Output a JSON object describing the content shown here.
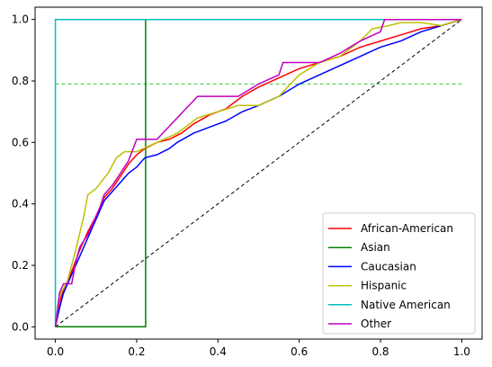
{
  "chart_data": {
    "type": "line",
    "title": "",
    "xlabel": "",
    "ylabel": "",
    "xlim": [
      -0.05,
      1.05
    ],
    "ylim": [
      -0.04,
      1.04
    ],
    "grid": false,
    "legend_position": "lower-right",
    "x_ticks": [
      "0.0",
      "0.2",
      "0.4",
      "0.6",
      "0.8",
      "1.0"
    ],
    "y_ticks": [
      "0.0",
      "0.2",
      "0.4",
      "0.6",
      "0.8",
      "1.0"
    ],
    "series": [
      {
        "name": "African-American",
        "color": "#ff0000",
        "points": [
          [
            0,
            0
          ],
          [
            0.01,
            0.08
          ],
          [
            0.02,
            0.12
          ],
          [
            0.04,
            0.18
          ],
          [
            0.06,
            0.25
          ],
          [
            0.08,
            0.31
          ],
          [
            0.1,
            0.36
          ],
          [
            0.12,
            0.42
          ],
          [
            0.14,
            0.45
          ],
          [
            0.16,
            0.49
          ],
          [
            0.18,
            0.53
          ],
          [
            0.2,
            0.56
          ],
          [
            0.22,
            0.58
          ],
          [
            0.25,
            0.6
          ],
          [
            0.28,
            0.61
          ],
          [
            0.31,
            0.63
          ],
          [
            0.34,
            0.66
          ],
          [
            0.38,
            0.69
          ],
          [
            0.42,
            0.71
          ],
          [
            0.46,
            0.75
          ],
          [
            0.5,
            0.78
          ],
          [
            0.55,
            0.81
          ],
          [
            0.6,
            0.84
          ],
          [
            0.65,
            0.86
          ],
          [
            0.7,
            0.88
          ],
          [
            0.75,
            0.91
          ],
          [
            0.8,
            0.93
          ],
          [
            0.85,
            0.95
          ],
          [
            0.9,
            0.97
          ],
          [
            0.95,
            0.98
          ],
          [
            1.0,
            1.0
          ]
        ]
      },
      {
        "name": "Asian",
        "color": "#008000",
        "points": [
          [
            0,
            0
          ],
          [
            0.222,
            0
          ],
          [
            0.222,
            1.0
          ],
          [
            0.222,
            1.0
          ]
        ]
      },
      {
        "name": "Caucasian",
        "color": "#0000ff",
        "points": [
          [
            0,
            0
          ],
          [
            0.01,
            0.06
          ],
          [
            0.02,
            0.11
          ],
          [
            0.04,
            0.17
          ],
          [
            0.06,
            0.23
          ],
          [
            0.08,
            0.29
          ],
          [
            0.1,
            0.35
          ],
          [
            0.12,
            0.41
          ],
          [
            0.14,
            0.44
          ],
          [
            0.16,
            0.47
          ],
          [
            0.18,
            0.5
          ],
          [
            0.2,
            0.52
          ],
          [
            0.22,
            0.55
          ],
          [
            0.25,
            0.56
          ],
          [
            0.28,
            0.58
          ],
          [
            0.3,
            0.6
          ],
          [
            0.34,
            0.63
          ],
          [
            0.38,
            0.65
          ],
          [
            0.42,
            0.67
          ],
          [
            0.46,
            0.7
          ],
          [
            0.5,
            0.72
          ],
          [
            0.55,
            0.75
          ],
          [
            0.6,
            0.79
          ],
          [
            0.65,
            0.82
          ],
          [
            0.7,
            0.85
          ],
          [
            0.75,
            0.88
          ],
          [
            0.8,
            0.91
          ],
          [
            0.85,
            0.93
          ],
          [
            0.9,
            0.96
          ],
          [
            0.95,
            0.98
          ],
          [
            1.0,
            1.0
          ]
        ]
      },
      {
        "name": "Hispanic",
        "color": "#bfbf00",
        "points": [
          [
            0,
            0
          ],
          [
            0.01,
            0.1
          ],
          [
            0.03,
            0.15
          ],
          [
            0.05,
            0.25
          ],
          [
            0.07,
            0.36
          ],
          [
            0.08,
            0.43
          ],
          [
            0.1,
            0.45
          ],
          [
            0.13,
            0.5
          ],
          [
            0.15,
            0.55
          ],
          [
            0.17,
            0.57
          ],
          [
            0.2,
            0.57
          ],
          [
            0.25,
            0.6
          ],
          [
            0.3,
            0.63
          ],
          [
            0.35,
            0.68
          ],
          [
            0.4,
            0.7
          ],
          [
            0.45,
            0.72
          ],
          [
            0.5,
            0.72
          ],
          [
            0.55,
            0.75
          ],
          [
            0.6,
            0.82
          ],
          [
            0.65,
            0.86
          ],
          [
            0.7,
            0.88
          ],
          [
            0.75,
            0.93
          ],
          [
            0.78,
            0.97
          ],
          [
            0.82,
            0.98
          ],
          [
            0.85,
            0.99
          ],
          [
            0.9,
            0.99
          ],
          [
            0.95,
            0.98
          ],
          [
            1.0,
            1.0
          ]
        ]
      },
      {
        "name": "Native American",
        "color": "#00bfbf",
        "points": [
          [
            0,
            0
          ],
          [
            0,
            1.0
          ],
          [
            1.0,
            1.0
          ]
        ]
      },
      {
        "name": "Other",
        "color": "#bf00bf",
        "points": [
          [
            0,
            0
          ],
          [
            0.01,
            0.11
          ],
          [
            0.02,
            0.14
          ],
          [
            0.04,
            0.14
          ],
          [
            0.05,
            0.21
          ],
          [
            0.06,
            0.26
          ],
          [
            0.08,
            0.3
          ],
          [
            0.1,
            0.36
          ],
          [
            0.11,
            0.39
          ],
          [
            0.12,
            0.43
          ],
          [
            0.14,
            0.46
          ],
          [
            0.16,
            0.5
          ],
          [
            0.18,
            0.54
          ],
          [
            0.2,
            0.61
          ],
          [
            0.25,
            0.61
          ],
          [
            0.3,
            0.68
          ],
          [
            0.35,
            0.75
          ],
          [
            0.4,
            0.75
          ],
          [
            0.45,
            0.75
          ],
          [
            0.5,
            0.79
          ],
          [
            0.55,
            0.82
          ],
          [
            0.56,
            0.86
          ],
          [
            0.6,
            0.86
          ],
          [
            0.65,
            0.86
          ],
          [
            0.7,
            0.89
          ],
          [
            0.75,
            0.93
          ],
          [
            0.8,
            0.96
          ],
          [
            0.81,
            1.0
          ],
          [
            0.9,
            1.0
          ],
          [
            1.0,
            1.0
          ]
        ]
      }
    ],
    "reference_lines": [
      {
        "style": "dashed",
        "color": "#000000",
        "points": [
          [
            0,
            0
          ],
          [
            1,
            1
          ]
        ]
      },
      {
        "style": "dashed",
        "color": "#32cd32",
        "points": [
          [
            0,
            0.79
          ],
          [
            1,
            0.79
          ]
        ]
      }
    ]
  }
}
